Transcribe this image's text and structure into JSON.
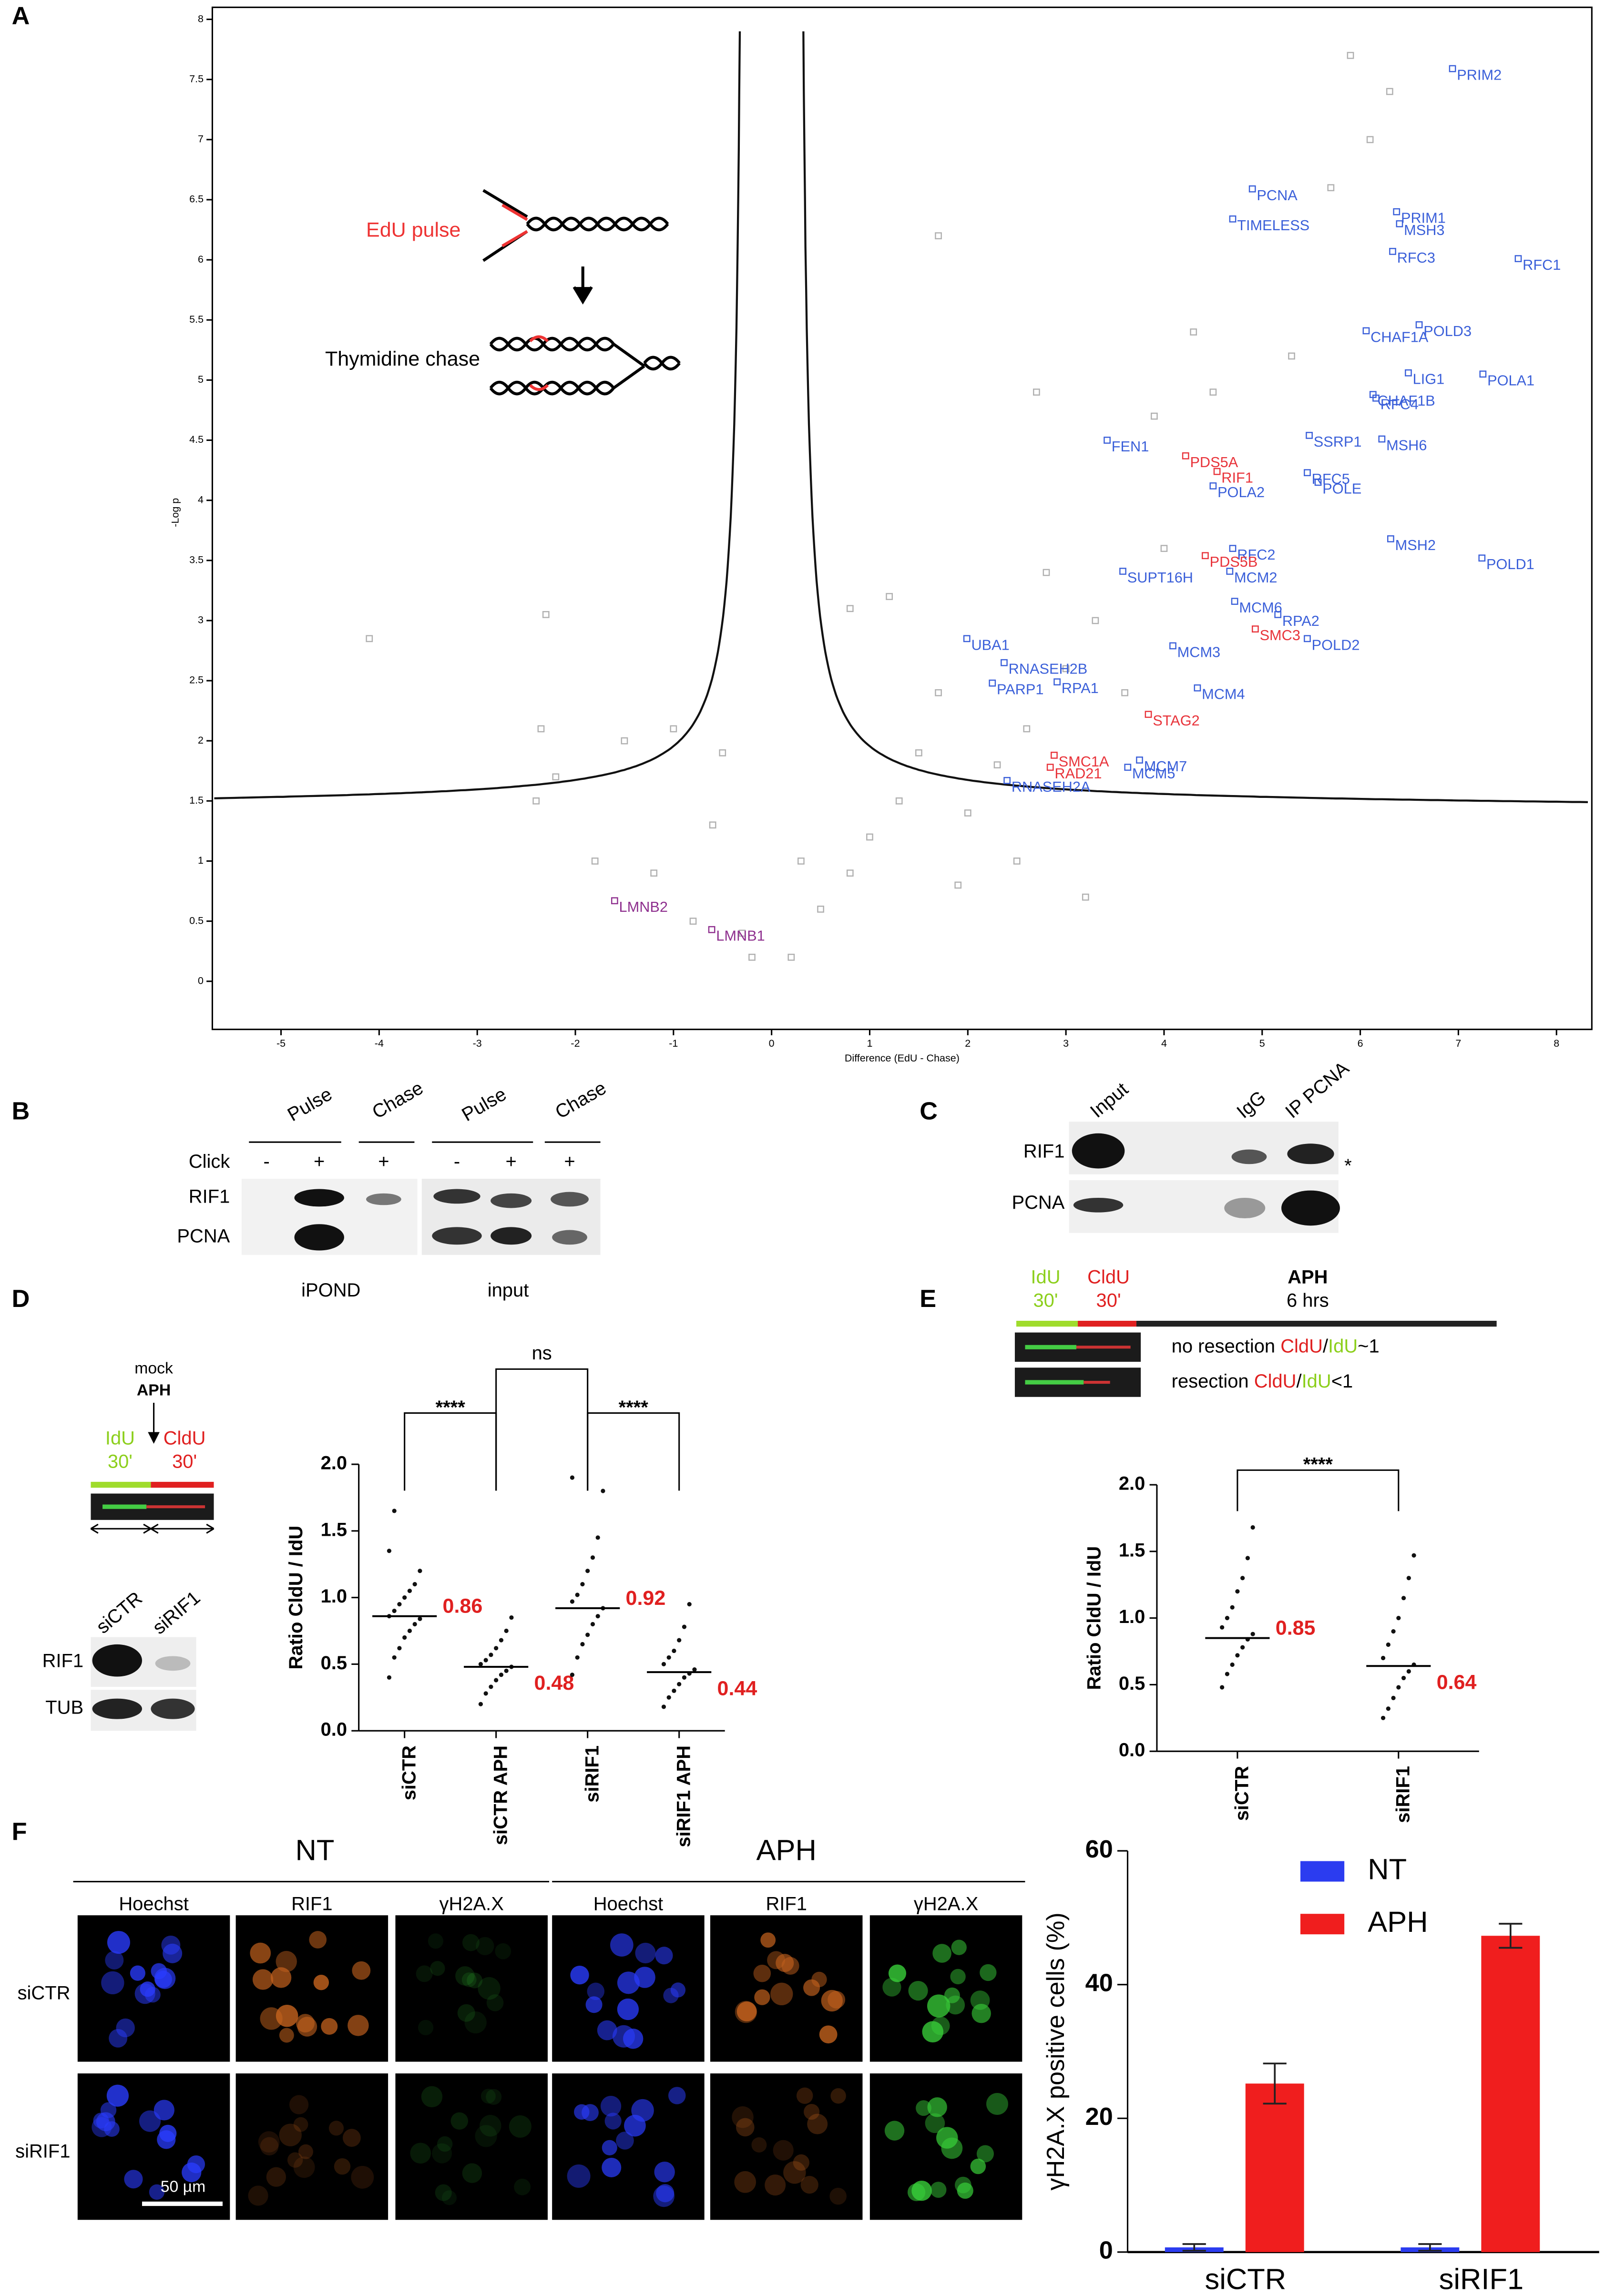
{
  "figure": {
    "panel_labels": [
      "A",
      "B",
      "C",
      "D",
      "E",
      "F"
    ],
    "panel_a": {
      "pulse": "EdU pulse",
      "chase": "Thymidine chase"
    },
    "panel_b": {
      "headers": [
        "Pulse",
        "Chase",
        "Pulse",
        "Chase"
      ],
      "click": "Click",
      "click_signs": [
        "-",
        "+",
        "+",
        "-",
        "+",
        "+"
      ],
      "rows": [
        "RIF1",
        "PCNA"
      ],
      "groups": [
        "iPOND",
        "input"
      ]
    },
    "panel_c": {
      "headers": [
        "Input",
        "IgG",
        "IP PCNA"
      ],
      "rows": [
        "RIF1",
        "PCNA"
      ],
      "star": "*"
    },
    "panel_d": {
      "mock": "mock",
      "aph": "APH",
      "idu": "IdU",
      "idu_time": "30'",
      "cldu": "CldU",
      "cldu_time": "30'",
      "blot_headers": [
        "siCTR",
        "siRIF1"
      ],
      "blot_rows": [
        "RIF1",
        "TUB"
      ]
    },
    "panel_e": {
      "idu": "IdU",
      "idu_time": "30'",
      "cldu": "CldU",
      "cldu_time": "30'",
      "aph": "APH",
      "aph_time": "6 hrs",
      "line1": [
        "no resection ",
        "CldU",
        "/",
        "IdU",
        "~1"
      ],
      "line2": [
        "resection ",
        "CldU",
        "/",
        "IdU",
        "<1"
      ]
    },
    "panel_f": {
      "groups": [
        "NT",
        "APH"
      ],
      "columns": [
        "Hoechst",
        "RIF1",
        "γH2A.X",
        "Hoechst",
        "RIF1",
        "γH2A.X"
      ],
      "rows": [
        "siCTR",
        "siRIF1"
      ],
      "scale": "50 µm"
    }
  },
  "chart_data": [
    {
      "type": "scatter",
      "xlabel": "Difference (EdU - Chase)",
      "ylabel": "-Log p",
      "xlim": [
        -5.7,
        8.36
      ],
      "ylim": [
        -0.4,
        8.1
      ],
      "xticks": [
        -5,
        -4,
        -3,
        -2,
        -1,
        0,
        1,
        2,
        3,
        4,
        5,
        6,
        7,
        8
      ],
      "yticks": [
        0,
        0.5,
        1,
        1.5,
        2,
        2.5,
        3,
        3.5,
        4,
        4.5,
        5,
        5.5,
        6,
        6.5,
        7,
        7.5,
        8
      ],
      "series": [
        {
          "color": "#b0b0b0",
          "x": [
            -4.1,
            -2.3,
            -2.35,
            -2.2,
            -1.5,
            -1,
            -0.6,
            -1.2,
            -0.3,
            -0.2,
            0.2,
            0.5,
            0.8,
            1,
            1.3,
            1.5,
            2,
            2.3,
            1.7,
            2.6,
            3,
            3.3,
            2.8,
            3.6,
            4,
            4.5,
            5.3,
            5.7,
            6.1,
            6.3,
            5.9,
            4.3,
            3.9,
            2.7,
            1.7,
            1.2,
            0.8,
            -0.5,
            0.3,
            -0.8,
            1.9,
            2.5,
            3.2,
            -1.8,
            -2.4
          ],
          "values": [
            2.85,
            3.05,
            2.1,
            1.7,
            2,
            2.1,
            1.3,
            0.9,
            0.4,
            0.2,
            0.2,
            0.6,
            0.9,
            1.2,
            1.5,
            1.9,
            1.4,
            1.8,
            2.4,
            2.1,
            2.6,
            3,
            3.4,
            2.4,
            3.6,
            4.9,
            5.2,
            6.6,
            7,
            7.4,
            7.7,
            5.4,
            4.7,
            4.9,
            6.2,
            3.2,
            3.1,
            1.9,
            1,
            0.5,
            0.8,
            1,
            0.7,
            1,
            1.5
          ]
        },
        {
          "color": "#3a5fd9",
          "labels": [
            "PRIM2",
            "PCNA",
            "PRIM1",
            "MSH3",
            "TIMELESS",
            "RFC3",
            "RFC1",
            "POLD3",
            "CHAF1A",
            "LIG1",
            "POLA1",
            "CHAF1B",
            "RFC4",
            "MSH6",
            "SSRP1",
            "FEN1",
            "RFC5",
            "POLE",
            "POLA2",
            "MSH2",
            "POLD1",
            "RFC2",
            "MCM2",
            "SUPT16H",
            "MCM6",
            "RPA2",
            "POLD2",
            "UBA1",
            "MCM3",
            "RNASEH2B",
            "PARP1",
            "RPA1",
            "MCM4",
            "MCM7",
            "MCM5",
            "RNASEH2A"
          ],
          "x": [
            6.94,
            4.9,
            6.37,
            6.4,
            4.7,
            6.33,
            7.61,
            6.6,
            6.06,
            6.49,
            7.25,
            6.13,
            6.16,
            6.22,
            5.48,
            3.42,
            5.46,
            5.57,
            4.5,
            6.31,
            7.24,
            4.7,
            4.67,
            3.58,
            4.72,
            5.16,
            5.46,
            1.99,
            4.09,
            2.37,
            2.25,
            2.91,
            4.34,
            3.75,
            3.63,
            2.4
          ],
          "values": [
            7.59,
            6.59,
            6.4,
            6.3,
            6.34,
            6.07,
            6.01,
            5.46,
            5.41,
            5.06,
            5.05,
            4.88,
            4.85,
            4.51,
            4.54,
            4.5,
            4.23,
            4.15,
            4.12,
            3.68,
            3.52,
            3.6,
            3.41,
            3.41,
            3.16,
            3.05,
            2.85,
            2.85,
            2.79,
            2.65,
            2.48,
            2.49,
            2.44,
            1.84,
            1.78,
            1.67
          ]
        },
        {
          "color": "#e8333a",
          "labels": [
            "PDS5A",
            "RIF1",
            "PDS5B",
            "SMC3",
            "STAG2",
            "SMC1A",
            "RAD21"
          ],
          "x": [
            4.22,
            4.54,
            4.42,
            4.93,
            3.84,
            2.88,
            2.84
          ],
          "values": [
            4.37,
            4.24,
            3.54,
            2.93,
            2.22,
            1.88,
            1.78
          ]
        },
        {
          "color": "#8e2f8e",
          "labels": [
            "LMNB2",
            "LMNB1"
          ],
          "x": [
            -1.6,
            -0.61
          ],
          "values": [
            0.67,
            0.43
          ]
        }
      ]
    },
    {
      "type": "strip",
      "ylabel": "Ratio CldU / IdU",
      "categories": [
        "siCTR",
        "siCTR APH",
        "siRIF1",
        "siRIF1 APH"
      ],
      "ylim": [
        0,
        2
      ],
      "yticks": [
        {
          "value": 0,
          "label": "0.0"
        },
        0.5,
        {
          "value": 1,
          "label": "1.0"
        },
        1.5,
        {
          "value": 2,
          "label": "2.0"
        }
      ],
      "points": [
        [
          0.4,
          0.55,
          0.62,
          0.7,
          0.75,
          0.8,
          0.84,
          0.86,
          0.9,
          0.95,
          1,
          1.05,
          1.1,
          1.2,
          1.35,
          1.65
        ],
        [
          0.2,
          0.28,
          0.33,
          0.38,
          0.42,
          0.45,
          0.48,
          0.5,
          0.53,
          0.57,
          0.62,
          0.68,
          0.75,
          0.85
        ],
        [
          0.42,
          0.55,
          0.65,
          0.72,
          0.8,
          0.86,
          0.92,
          0.97,
          1.02,
          1.1,
          1.2,
          1.3,
          1.45,
          1.8,
          1.9
        ],
        [
          0.18,
          0.25,
          0.3,
          0.35,
          0.4,
          0.43,
          0.46,
          0.5,
          0.55,
          0.6,
          0.68,
          0.78,
          0.95
        ]
      ],
      "medians": [
        0.86,
        0.48,
        0.92,
        0.44
      ],
      "value_labels": [
        "0.86",
        "0.48",
        "0.92",
        "0.44"
      ],
      "annotations": [
        "****",
        "****",
        "ns"
      ]
    },
    {
      "type": "strip",
      "ylabel": "Ratio CldU / IdU",
      "categories": [
        "siCTR",
        "siRIF1"
      ],
      "ylim": [
        0,
        2
      ],
      "yticks": [
        {
          "value": 0,
          "label": "0.0"
        },
        0.5,
        {
          "value": 1,
          "label": "1.0"
        },
        1.5,
        {
          "value": 2,
          "label": "2.0"
        }
      ],
      "points": [
        [
          0.48,
          0.58,
          0.65,
          0.72,
          0.78,
          0.84,
          0.88,
          0.93,
          1,
          1.08,
          1.2,
          1.3,
          1.45,
          1.68
        ],
        [
          0.25,
          0.32,
          0.4,
          0.48,
          0.55,
          0.6,
          0.65,
          0.7,
          0.8,
          0.9,
          1,
          1.15,
          1.3,
          1.47
        ]
      ],
      "medians": [
        0.85,
        0.64
      ],
      "value_labels": [
        "0.85",
        "0.64"
      ],
      "annotations": [
        "****"
      ]
    },
    {
      "type": "bar",
      "ylabel": "γH2A.X positive cells (%)",
      "categories": [
        "siCTR",
        "siRIF1"
      ],
      "ylim": [
        0,
        60
      ],
      "yticks": [
        0,
        20,
        40,
        60
      ],
      "series": [
        {
          "name": "NT",
          "color": "#2b3cf0",
          "values": [
            0.7,
            0.7
          ],
          "errors": [
            0.5,
            0.5
          ]
        },
        {
          "name": "APH",
          "color": "#f01e1e",
          "values": [
            25.2,
            47.3
          ],
          "errors": [
            3,
            1.8
          ]
        }
      ]
    }
  ]
}
